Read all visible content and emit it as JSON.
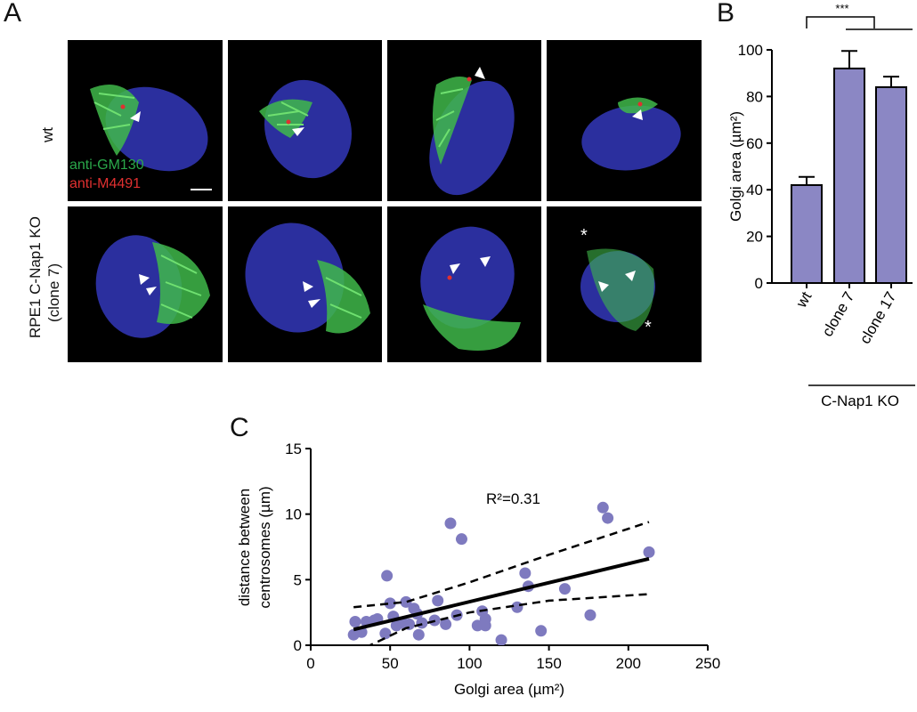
{
  "panel_a": {
    "letter": "A",
    "row_labels": [
      "wt",
      "RPE1 C-Nap1 KO",
      "(clone 7)"
    ],
    "legend": [
      {
        "text": "anti-GM130",
        "color": "#2aa84a"
      },
      {
        "text": "anti-M4491",
        "color": "#e03030"
      }
    ],
    "tile_asterisk": "*"
  },
  "panel_b": {
    "letter": "B",
    "significance": "***",
    "group_label": "C-Nap1 KO",
    "chart_data": {
      "type": "bar",
      "categories": [
        "wt",
        "clone 7",
        "clone 17"
      ],
      "values": [
        42,
        92,
        84
      ],
      "errors": [
        3.5,
        7.5,
        4.5
      ],
      "ylabel": "Golgi area (µm²)",
      "ylim": [
        0,
        100
      ],
      "yticks": [
        0,
        20,
        40,
        60,
        80,
        100
      ],
      "bar_color": "#8b87c4",
      "grid": false
    }
  },
  "panel_c": {
    "letter": "C",
    "annotation": "R²=0.31",
    "chart_data": {
      "type": "scatter",
      "xlabel": "Golgi area (µm²)",
      "ylabel_lines": [
        "distance between",
        "centrosomes (µm)"
      ],
      "xlim": [
        0,
        250
      ],
      "ylim": [
        0,
        15
      ],
      "xticks": [
        0,
        50,
        100,
        150,
        200,
        250
      ],
      "yticks": [
        0,
        5,
        10,
        15
      ],
      "point_color": "#7e7abf",
      "points": [
        [
          27,
          0.8
        ],
        [
          28,
          1.8
        ],
        [
          32,
          1.0
        ],
        [
          35,
          1.8
        ],
        [
          40,
          1.9
        ],
        [
          42,
          2.0
        ],
        [
          47,
          0.9
        ],
        [
          48,
          5.3
        ],
        [
          50,
          3.2
        ],
        [
          52,
          2.2
        ],
        [
          54,
          1.5
        ],
        [
          58,
          1.7
        ],
        [
          60,
          3.3
        ],
        [
          62,
          1.6
        ],
        [
          65,
          2.8
        ],
        [
          67,
          2.4
        ],
        [
          68,
          0.8
        ],
        [
          70,
          1.7
        ],
        [
          78,
          1.9
        ],
        [
          80,
          3.4
        ],
        [
          85,
          1.6
        ],
        [
          88,
          9.3
        ],
        [
          92,
          2.3
        ],
        [
          95,
          8.1
        ],
        [
          105,
          1.5
        ],
        [
          108,
          2.6
        ],
        [
          110,
          1.5
        ],
        [
          110,
          2.0
        ],
        [
          120,
          0.4
        ],
        [
          130,
          2.9
        ],
        [
          135,
          5.5
        ],
        [
          137,
          4.5
        ],
        [
          145,
          1.1
        ],
        [
          160,
          4.3
        ],
        [
          176,
          2.3
        ],
        [
          184,
          10.5
        ],
        [
          187,
          9.7
        ],
        [
          213,
          7.1
        ]
      ],
      "fit_line": {
        "x": [
          27,
          213
        ],
        "y": [
          1.2,
          6.6
        ]
      },
      "ci_upper": {
        "x": [
          27,
          60,
          100,
          150,
          213
        ],
        "y": [
          2.9,
          3.3,
          4.8,
          6.9,
          9.4
        ]
      },
      "ci_lower": {
        "x": [
          27,
          60,
          100,
          150,
          213
        ],
        "y": [
          -0.6,
          1.3,
          2.5,
          3.4,
          3.9
        ]
      },
      "grid": false
    }
  }
}
